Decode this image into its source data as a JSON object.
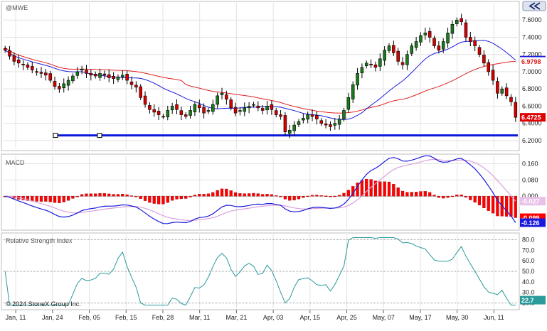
{
  "symbol": "@MWE",
  "copyright": "© 2024 StoneX Group Inc.",
  "nav_icon": "double-chevron-left-icon",
  "panels": {
    "price": {
      "label": "@MWE"
    },
    "macd": {
      "label": "MACD"
    },
    "rsi": {
      "label": "Relative Strength Index"
    }
  },
  "colors": {
    "up_candle": "#1c7a1c",
    "down_candle": "#d40000",
    "ma_fast": "#1a1adc",
    "ma_slow": "#e02020",
    "macd_line": "#1a1adc",
    "signal_line": "#d9a0d9",
    "histogram": "#ff0000",
    "rsi_line": "#2a9a9a",
    "support_line": "#0a1ad8",
    "current_price_tag": "#e00000",
    "ma_fast_tag": "#1a1adc",
    "ma_slow_tag": "#e02020"
  },
  "chart_data": [
    {
      "type": "candlestick",
      "title": "@MWE",
      "x": [
        "Jan, 11",
        "Jan, 24",
        "Feb, 05",
        "Feb, 15",
        "Feb, 28",
        "Mar, 11",
        "Mar, 21",
        "Apr, 03",
        "Apr, 15",
        "Apr, 25",
        "May, 07",
        "May, 17",
        "May, 30",
        "Jun, 11"
      ],
      "ylim": [
        6.1,
        7.8
      ],
      "yticks": [
        "7.6000",
        "7.4000",
        "7.2000",
        "7.0000",
        "6.8000",
        "6.6000",
        "6.4000",
        "6.2000"
      ],
      "closes": [
        7.25,
        7.18,
        7.12,
        7.1,
        7.08,
        7.05,
        7.02,
        7.0,
        6.98,
        6.96,
        6.9,
        6.83,
        6.8,
        6.86,
        6.9,
        6.95,
        7.0,
        7.03,
        6.98,
        6.96,
        6.95,
        6.98,
        6.96,
        6.93,
        6.92,
        6.94,
        6.96,
        6.9,
        6.85,
        6.82,
        6.7,
        6.62,
        6.56,
        6.53,
        6.5,
        6.48,
        6.55,
        6.6,
        6.56,
        6.5,
        6.48,
        6.55,
        6.62,
        6.58,
        6.52,
        6.55,
        6.62,
        6.72,
        6.75,
        6.68,
        6.58,
        6.52,
        6.55,
        6.58,
        6.6,
        6.62,
        6.58,
        6.55,
        6.6,
        6.56,
        6.5,
        6.48,
        6.3,
        6.32,
        6.38,
        6.42,
        6.46,
        6.5,
        6.48,
        6.45,
        6.4,
        6.38,
        6.36,
        6.4,
        6.45,
        6.55,
        6.7,
        6.85,
        6.98,
        7.05,
        7.1,
        7.08,
        7.05,
        7.15,
        7.25,
        7.3,
        7.22,
        7.12,
        7.08,
        7.2,
        7.3,
        7.35,
        7.42,
        7.45,
        7.4,
        7.3,
        7.25,
        7.35,
        7.45,
        7.55,
        7.6,
        7.58,
        7.4,
        7.35,
        7.3,
        7.2,
        7.1,
        7.0,
        6.9,
        6.75,
        6.8,
        6.72,
        6.65,
        6.47
      ],
      "ma_fast_current": "7.1532",
      "ma_slow_current": "6.9798",
      "current_price": "6.4725",
      "support_level": 6.26
    },
    {
      "type": "macd",
      "title": "MACD",
      "ylim": [
        -0.16,
        0.2
      ],
      "yticks": [
        "0.160",
        "0.080",
        "0.000"
      ],
      "macd_current": "-0.126",
      "signal_current": "-0.027",
      "histogram_current": "-0.099"
    },
    {
      "type": "rsi",
      "title": "Relative Strength Index",
      "ylim": [
        15,
        85
      ],
      "yticks": [
        "80.0",
        "70.0",
        "60.0",
        "50.0",
        "40.0",
        "30.0",
        "20.0"
      ],
      "reference_levels": [
        80,
        50,
        20
      ],
      "rsi_current": "22.7"
    }
  ]
}
